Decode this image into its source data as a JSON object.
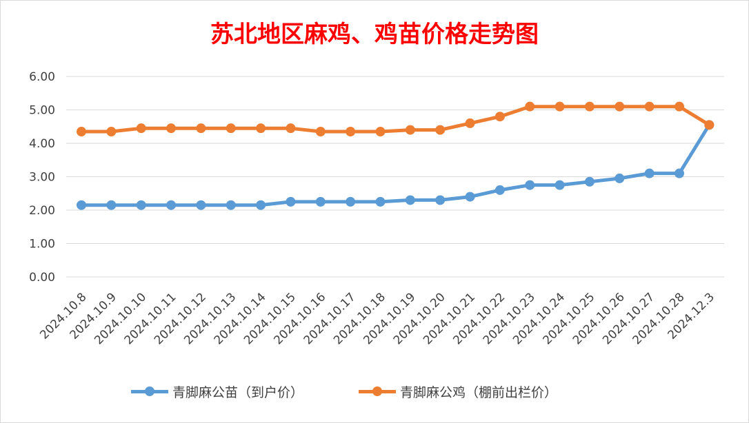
{
  "chart_data": {
    "type": "line",
    "title": "苏北地区麻鸡、鸡苗价格走势图",
    "title_color": "#ff0000",
    "x": [
      "2024.10.8",
      "2024.10.9",
      "2024.10.10",
      "2024.10.11",
      "2024.10.12",
      "2024.10.13",
      "2024.10.14",
      "2024.10.15",
      "2024.10.16",
      "2024.10.17",
      "2024.10.18",
      "2024.10.19",
      "2024.10.20",
      "2024.10.21",
      "2024.10.22",
      "2024.10.23",
      "2024.10.24",
      "2024.10.25",
      "2024.10.26",
      "2024.10.27",
      "2024.10.28",
      "2024.12.3"
    ],
    "yticks": [
      "0.00",
      "1.00",
      "2.00",
      "3.00",
      "4.00",
      "5.00",
      "6.00"
    ],
    "ylim": [
      0,
      6
    ],
    "grid": true,
    "legend_position": "bottom",
    "series": [
      {
        "name": "青脚麻公苗（到户价）",
        "color": "#5b9bd5",
        "values": [
          2.15,
          2.15,
          2.15,
          2.15,
          2.15,
          2.15,
          2.15,
          2.25,
          2.25,
          2.25,
          2.25,
          2.3,
          2.3,
          2.4,
          2.6,
          2.75,
          2.75,
          2.85,
          2.95,
          3.1,
          3.1,
          4.55
        ]
      },
      {
        "name": "青脚麻公鸡（棚前出栏价）",
        "color": "#ed7d31",
        "values": [
          4.35,
          4.35,
          4.45,
          4.45,
          4.45,
          4.45,
          4.45,
          4.45,
          4.35,
          4.35,
          4.35,
          4.4,
          4.4,
          4.6,
          4.8,
          5.1,
          5.1,
          5.1,
          5.1,
          5.1,
          5.1,
          4.55
        ]
      }
    ]
  }
}
